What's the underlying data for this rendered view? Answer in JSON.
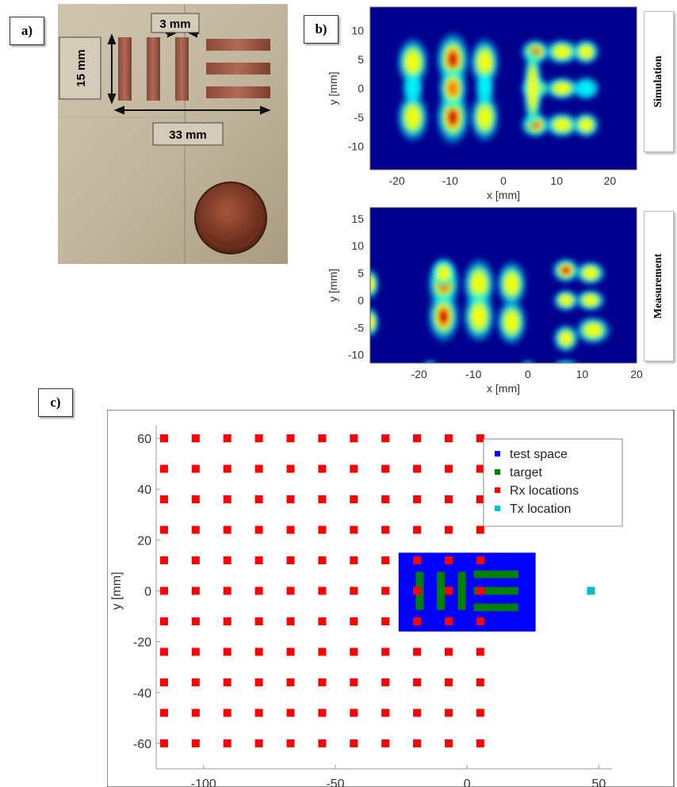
{
  "panels": {
    "a": "a)",
    "b": "b)",
    "c": "c)"
  },
  "photo": {
    "dim_width": "3 mm",
    "dim_height": "15 mm",
    "dim_length": "33 mm"
  },
  "side_labels": {
    "top": "Simulation",
    "bottom": "Measurement"
  },
  "colors": {
    "test_space": "#0000ff",
    "target": "#008000",
    "rx": "#ff0000",
    "tx": "#00c0c0",
    "jet_background": "#00008f"
  },
  "chart_data": [
    {
      "type": "heatmap",
      "name": "simulation",
      "xlabel": "x [mm]",
      "ylabel": "y [mm]",
      "xlim": [
        -25,
        25
      ],
      "ylim": [
        -14,
        14
      ],
      "xticks": [
        -20,
        -10,
        0,
        10,
        20
      ],
      "yticks": [
        10,
        5,
        0,
        -5,
        -10
      ],
      "colormap": "jet"
    },
    {
      "type": "heatmap",
      "name": "measurement",
      "xlabel": "x [mm]",
      "ylabel": "y [mm]",
      "xlim": [
        -29,
        20
      ],
      "ylim": [
        -11.5,
        17
      ],
      "xticks": [
        -20,
        -10,
        0,
        10,
        20
      ],
      "yticks": [
        15,
        10,
        5,
        0,
        -5,
        -10
      ],
      "colormap": "jet"
    },
    {
      "type": "scatter",
      "name": "layout",
      "xlabel": "x [mm]",
      "ylabel": "y [mm]",
      "xlim": [
        -118,
        55
      ],
      "ylim": [
        -70,
        65
      ],
      "xticks": [
        -100,
        -50,
        0,
        50
      ],
      "yticks": [
        60,
        40,
        20,
        0,
        -20,
        -40,
        -60
      ],
      "legend_position": "top-right",
      "legend": [
        "test space",
        "target",
        "Rx locations",
        "Tx location"
      ],
      "rx_x": [
        -115,
        -103,
        -91,
        -79,
        -67,
        -55,
        -43,
        -31,
        -19,
        -7,
        5
      ],
      "rx_y": [
        60,
        48,
        36,
        24,
        12,
        0,
        -12,
        -24,
        -36,
        -48,
        -60
      ],
      "tx": {
        "x": 47,
        "y": 0
      },
      "test_space": {
        "x": [
          -26,
          26
        ],
        "y": [
          -16,
          15
        ]
      }
    }
  ]
}
